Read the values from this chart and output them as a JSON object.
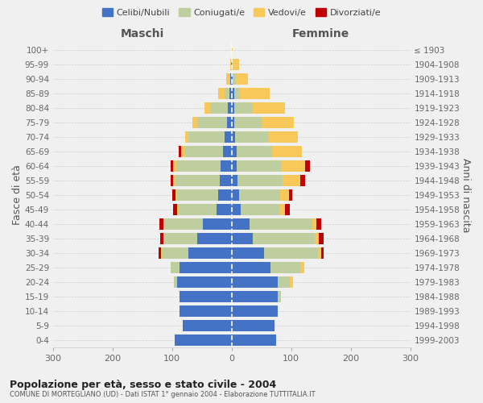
{
  "age_groups": [
    "0-4",
    "5-9",
    "10-14",
    "15-19",
    "20-24",
    "25-29",
    "30-34",
    "35-39",
    "40-44",
    "45-49",
    "50-54",
    "55-59",
    "60-64",
    "65-69",
    "70-74",
    "75-79",
    "80-84",
    "85-89",
    "90-94",
    "95-99",
    "100+"
  ],
  "birth_years": [
    "1999-2003",
    "1994-1998",
    "1989-1993",
    "1984-1988",
    "1979-1983",
    "1974-1978",
    "1969-1973",
    "1964-1968",
    "1959-1963",
    "1954-1958",
    "1949-1953",
    "1944-1948",
    "1939-1943",
    "1934-1938",
    "1929-1933",
    "1924-1928",
    "1919-1923",
    "1914-1918",
    "1909-1913",
    "1904-1908",
    "≤ 1903"
  ],
  "male": {
    "celibi": [
      95,
      82,
      88,
      88,
      92,
      88,
      72,
      58,
      48,
      25,
      22,
      20,
      18,
      15,
      12,
      8,
      6,
      4,
      2,
      1,
      0
    ],
    "coniugati": [
      0,
      0,
      0,
      0,
      5,
      15,
      45,
      55,
      65,
      65,
      70,
      75,
      75,
      65,
      60,
      50,
      30,
      8,
      2,
      0,
      0
    ],
    "vedovi": [
      0,
      0,
      0,
      0,
      0,
      0,
      1,
      1,
      2,
      2,
      2,
      3,
      5,
      5,
      6,
      8,
      10,
      10,
      5,
      1,
      0
    ],
    "divorziati": [
      0,
      0,
      0,
      0,
      0,
      0,
      4,
      6,
      6,
      6,
      5,
      5,
      5,
      4,
      0,
      0,
      0,
      0,
      0,
      0,
      0
    ]
  },
  "female": {
    "nubili": [
      75,
      72,
      78,
      78,
      78,
      65,
      55,
      35,
      30,
      15,
      12,
      10,
      8,
      8,
      6,
      5,
      5,
      4,
      2,
      1,
      0
    ],
    "coniugate": [
      0,
      0,
      0,
      5,
      20,
      52,
      90,
      105,
      105,
      65,
      70,
      75,
      75,
      60,
      55,
      45,
      30,
      10,
      5,
      1,
      0
    ],
    "vedove": [
      0,
      0,
      0,
      0,
      5,
      5,
      5,
      6,
      8,
      10,
      15,
      30,
      40,
      50,
      50,
      55,
      55,
      50,
      20,
      10,
      2
    ],
    "divorziate": [
      0,
      0,
      0,
      0,
      0,
      0,
      5,
      8,
      8,
      8,
      5,
      8,
      8,
      0,
      0,
      0,
      0,
      0,
      0,
      0,
      0
    ]
  },
  "colors": {
    "celibi_nubili": "#4472C4",
    "coniugati": "#BFCE9E",
    "vedovi": "#F9C85A",
    "divorziati": "#C00000"
  },
  "xlim": 300,
  "title": "Popolazione per età, sesso e stato civile - 2004",
  "subtitle": "COMUNE DI MORTEGLIANO (UD) - Dati ISTAT 1° gennaio 2004 - Elaborazione TUTTITALIA.IT",
  "ylabel_left": "Fasce di età",
  "ylabel_right": "Anni di nascita",
  "xlabel_left": "Maschi",
  "xlabel_right": "Femmine",
  "legend_labels": [
    "Celibi/Nubili",
    "Coniugati/e",
    "Vedovi/e",
    "Divorziati/e"
  ],
  "bg_color": "#f0f0f0"
}
